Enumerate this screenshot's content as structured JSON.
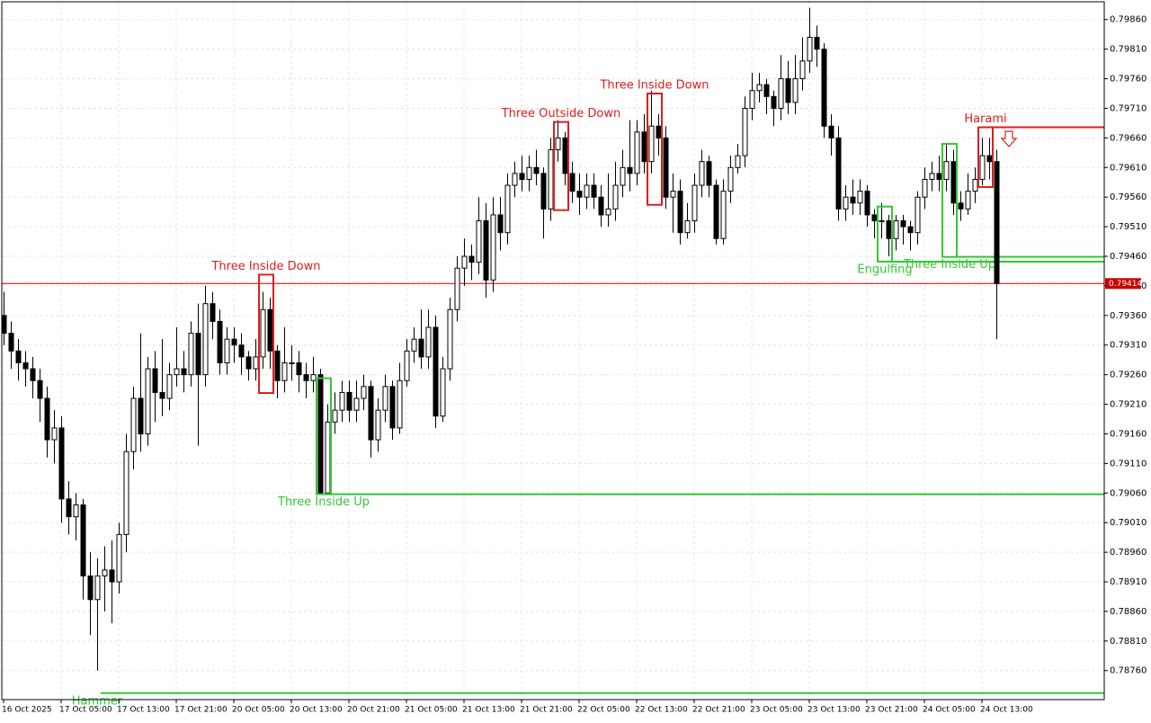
{
  "chart_data": {
    "type": "candlestick",
    "categories": [
      "16 Oct 2025",
      null,
      null,
      null,
      null,
      null,
      null,
      null,
      "17 Oct 05:00",
      null,
      null,
      null,
      null,
      null,
      null,
      null,
      "17 Oct 13:00",
      null,
      null,
      null,
      null,
      null,
      null,
      null,
      "17 Oct 21:00",
      null,
      null,
      null,
      null,
      null,
      null,
      null,
      "20 Oct 05:00",
      null,
      null,
      null,
      null,
      null,
      null,
      null,
      "20 Oct 13:00",
      null,
      null,
      null,
      null,
      null,
      null,
      null,
      "20 Oct 21:00",
      null,
      null,
      null,
      null,
      null,
      null,
      null,
      "21 Oct 05:00",
      null,
      null,
      null,
      null,
      null,
      null,
      null,
      "21 Oct 13:00",
      null,
      null,
      null,
      null,
      null,
      null,
      null,
      "21 Oct 21:00",
      null,
      null,
      null,
      null,
      null,
      null,
      null,
      "22 Oct 05:00",
      null,
      null,
      null,
      null,
      null,
      null,
      null,
      "22 Oct 13:00",
      null,
      null,
      null,
      null,
      null,
      null,
      null,
      "22 Oct 21:00",
      null,
      null,
      null,
      null,
      null,
      null,
      null,
      "23 Oct 05:00",
      null,
      null,
      null,
      null,
      null,
      null,
      null,
      "23 Oct 13:00",
      null,
      null,
      null,
      null,
      null,
      null,
      null,
      "23 Oct 21:00",
      null,
      null,
      null,
      null,
      null,
      null,
      null,
      "24 Oct 05:00",
      null,
      null,
      null,
      null,
      null,
      null,
      null,
      "24 Oct 13:00",
      null,
      null
    ],
    "open": [
      0.7936,
      0.7933,
      0.793,
      0.7928,
      0.7927,
      0.7925,
      0.7922,
      0.7915,
      0.7917,
      0.7905,
      0.7902,
      0.7904,
      0.7892,
      0.7888,
      0.7892,
      0.7893,
      0.7891,
      0.7899,
      0.7913,
      0.7922,
      0.7916,
      0.7927,
      0.7923,
      0.7922,
      0.7926,
      0.7927,
      0.7926,
      0.7933,
      0.7926,
      0.7938,
      0.7935,
      0.7928,
      0.7932,
      0.7931,
      0.7929,
      0.7927,
      0.7929,
      0.7937,
      0.793,
      0.7925,
      0.7928,
      0.7928,
      0.7926,
      0.7925,
      0.7926,
      0.7906,
      0.7918,
      0.792,
      0.7923,
      0.792,
      0.7922,
      0.7924,
      0.7915,
      0.792,
      0.7924,
      0.7917,
      0.7925,
      0.793,
      0.7932,
      0.7929,
      0.7934,
      0.7919,
      0.7927,
      0.7937,
      0.7944,
      0.7946,
      0.7945,
      0.7952,
      0.7942,
      0.7953,
      0.795,
      0.7958,
      0.796,
      0.7959,
      0.7961,
      0.796,
      0.7954,
      0.7964,
      0.7966,
      0.796,
      0.7957,
      0.7956,
      0.7958,
      0.7956,
      0.7953,
      0.7954,
      0.7958,
      0.7961,
      0.796,
      0.7967,
      0.7962,
      0.7968,
      0.7966,
      0.7956,
      0.7957,
      0.795,
      0.7952,
      0.7958,
      0.7962,
      0.7958,
      0.7949,
      0.7957,
      0.7961,
      0.7963,
      0.7971,
      0.7974,
      0.7975,
      0.7973,
      0.7971,
      0.7976,
      0.7972,
      0.7976,
      0.7979,
      0.7983,
      0.7981,
      0.7968,
      0.7966,
      0.7954,
      0.7956,
      0.7955,
      0.7957,
      0.7953,
      0.7952,
      0.7952,
      0.7949,
      0.7952,
      0.7951,
      0.795,
      0.7956,
      0.7959,
      0.796,
      0.7959,
      0.7962,
      0.7955,
      0.7954,
      0.7957,
      0.7959,
      0.7963,
      0.7962
    ],
    "high": [
      0.794,
      0.7935,
      0.7932,
      0.793,
      0.7929,
      0.7927,
      0.7924,
      0.792,
      0.7919,
      0.7908,
      0.7906,
      0.7905,
      0.7896,
      0.7895,
      0.7897,
      0.7898,
      0.7901,
      0.7916,
      0.7924,
      0.7933,
      0.7929,
      0.793,
      0.7932,
      0.7928,
      0.7934,
      0.793,
      0.7935,
      0.7938,
      0.7941,
      0.794,
      0.7937,
      0.7934,
      0.7934,
      0.7933,
      0.793,
      0.7932,
      0.794,
      0.7939,
      0.7931,
      0.7934,
      0.7931,
      0.793,
      0.7928,
      0.7929,
      0.7927,
      0.7921,
      0.7923,
      0.7925,
      0.7925,
      0.7925,
      0.7926,
      0.7925,
      0.7922,
      0.7926,
      0.7925,
      0.7928,
      0.7932,
      0.7934,
      0.7937,
      0.7937,
      0.7936,
      0.7929,
      0.7939,
      0.7946,
      0.7949,
      0.7948,
      0.7956,
      0.7955,
      0.7956,
      0.7956,
      0.796,
      0.7962,
      0.7963,
      0.7963,
      0.7964,
      0.7961,
      0.7966,
      0.7969,
      0.7967,
      0.7962,
      0.796,
      0.796,
      0.796,
      0.7958,
      0.796,
      0.7962,
      0.7964,
      0.7969,
      0.7969,
      0.797,
      0.7974,
      0.797,
      0.7968,
      0.796,
      0.7959,
      0.7955,
      0.796,
      0.7964,
      0.7963,
      0.7959,
      0.7959,
      0.7963,
      0.7965,
      0.7973,
      0.7977,
      0.7977,
      0.7976,
      0.7974,
      0.798,
      0.7979,
      0.798,
      0.7983,
      0.7988,
      0.7985,
      0.7982,
      0.797,
      0.7968,
      0.7958,
      0.7959,
      0.7959,
      0.7958,
      0.7954,
      0.7955,
      0.7953,
      0.7953,
      0.7953,
      0.7952,
      0.7957,
      0.7961,
      0.7962,
      0.7963,
      0.7965,
      0.7964,
      0.7957,
      0.796,
      0.7961,
      0.7966,
      0.7966,
      0.7964
    ],
    "low": [
      0.7931,
      0.7927,
      0.7925,
      0.7924,
      0.7922,
      0.7918,
      0.7912,
      0.7911,
      0.7901,
      0.7899,
      0.7898,
      0.7888,
      0.7882,
      0.7876,
      0.7886,
      0.7884,
      0.7889,
      0.7896,
      0.791,
      0.7913,
      0.7914,
      0.7918,
      0.7919,
      0.792,
      0.7924,
      0.7923,
      0.7924,
      0.7914,
      0.7924,
      0.7932,
      0.7926,
      0.7926,
      0.7928,
      0.7926,
      0.7925,
      0.7925,
      0.7927,
      0.7927,
      0.7922,
      0.7923,
      0.7925,
      0.7923,
      0.7922,
      0.7923,
      0.7906,
      0.7906,
      0.7916,
      0.7918,
      0.7918,
      0.7918,
      0.792,
      0.7912,
      0.7913,
      0.7918,
      0.7915,
      0.7916,
      0.7924,
      0.7928,
      0.7927,
      0.7927,
      0.7917,
      0.7918,
      0.7925,
      0.7935,
      0.7941,
      0.7942,
      0.7943,
      0.7939,
      0.794,
      0.7947,
      0.7948,
      0.7956,
      0.7957,
      0.7957,
      0.7958,
      0.7949,
      0.7952,
      0.7962,
      0.7958,
      0.7955,
      0.7953,
      0.7954,
      0.7954,
      0.7951,
      0.7951,
      0.7952,
      0.7956,
      0.7957,
      0.7958,
      0.796,
      0.796,
      0.7963,
      0.7954,
      0.795,
      0.7948,
      0.7949,
      0.795,
      0.7956,
      0.7956,
      0.7948,
      0.7948,
      0.7955,
      0.796,
      0.7961,
      0.7969,
      0.7972,
      0.797,
      0.7968,
      0.7969,
      0.797,
      0.797,
      0.7974,
      0.7977,
      0.7978,
      0.7966,
      0.7963,
      0.7952,
      0.7952,
      0.7953,
      0.7953,
      0.7951,
      0.7949,
      0.7949,
      0.7946,
      0.7947,
      0.7948,
      0.7947,
      0.7948,
      0.7954,
      0.7957,
      0.7957,
      0.7957,
      0.7953,
      0.7952,
      0.7953,
      0.7955,
      0.7958,
      0.7959,
      0.7932
    ],
    "close": [
      0.7933,
      0.793,
      0.7928,
      0.7927,
      0.7925,
      0.7922,
      0.7915,
      0.7917,
      0.7905,
      0.7902,
      0.7904,
      0.7892,
      0.7888,
      0.7892,
      0.7893,
      0.7891,
      0.7899,
      0.7913,
      0.7922,
      0.7916,
      0.7927,
      0.7923,
      0.7922,
      0.7926,
      0.7927,
      0.7926,
      0.7933,
      0.7926,
      0.7938,
      0.7935,
      0.7928,
      0.7932,
      0.7931,
      0.7929,
      0.7927,
      0.7929,
      0.7937,
      0.793,
      0.7925,
      0.7928,
      0.7928,
      0.7926,
      0.7925,
      0.7926,
      0.7906,
      0.7918,
      0.792,
      0.7923,
      0.792,
      0.7922,
      0.7924,
      0.7915,
      0.792,
      0.7924,
      0.7917,
      0.7925,
      0.793,
      0.7932,
      0.7929,
      0.7934,
      0.7919,
      0.7927,
      0.7937,
      0.7944,
      0.7946,
      0.7945,
      0.7952,
      0.7942,
      0.7953,
      0.795,
      0.7958,
      0.796,
      0.7959,
      0.7961,
      0.796,
      0.7954,
      0.7964,
      0.7966,
      0.796,
      0.7957,
      0.7956,
      0.7958,
      0.7956,
      0.7953,
      0.7954,
      0.7958,
      0.7961,
      0.796,
      0.7967,
      0.7962,
      0.7968,
      0.7966,
      0.7956,
      0.7957,
      0.795,
      0.7952,
      0.7958,
      0.7962,
      0.7958,
      0.7949,
      0.7957,
      0.7961,
      0.7963,
      0.7971,
      0.7974,
      0.7975,
      0.7973,
      0.7971,
      0.7976,
      0.7972,
      0.7976,
      0.7979,
      0.7983,
      0.7981,
      0.7968,
      0.7966,
      0.7954,
      0.7956,
      0.7955,
      0.7957,
      0.7953,
      0.7952,
      0.7952,
      0.7949,
      0.7952,
      0.7951,
      0.795,
      0.7956,
      0.7959,
      0.796,
      0.7959,
      0.7962,
      0.7955,
      0.7954,
      0.7957,
      0.7959,
      0.7963,
      0.7962,
      0.79414
    ],
    "up_color": "#ffffff",
    "down_color": "#000000",
    "outline_color": "#000000",
    "last_price": 0.79414,
    "last_price_color": "#c80000",
    "ylim": [
      0.78711,
      0.7989
    ],
    "yticks": [
      {
        "value": 0.7986,
        "label": "0.79860"
      },
      {
        "value": 0.7981,
        "label": "0.79810"
      },
      {
        "value": 0.7976,
        "label": "0.79760"
      },
      {
        "value": 0.7971,
        "label": "0.79710"
      },
      {
        "value": 0.7966,
        "label": "0.79660"
      },
      {
        "value": 0.7961,
        "label": "0.79610"
      },
      {
        "value": 0.7956,
        "label": "0.79560"
      },
      {
        "value": 0.7951,
        "label": "0.79510"
      },
      {
        "value": 0.7946,
        "label": "0.79460"
      },
      {
        "value": 0.7941,
        "label": "0.79410"
      },
      {
        "value": 0.7936,
        "label": "0.79360"
      },
      {
        "value": 0.7931,
        "label": "0.79310"
      },
      {
        "value": 0.7926,
        "label": "0.79260"
      },
      {
        "value": 0.7921,
        "label": "0.79210"
      },
      {
        "value": 0.7916,
        "label": "0.79160"
      },
      {
        "value": 0.7911,
        "label": "0.79110"
      },
      {
        "value": 0.7906,
        "label": "0.79060"
      },
      {
        "value": 0.7901,
        "label": "0.79010"
      },
      {
        "value": 0.7896,
        "label": "0.78960"
      },
      {
        "value": 0.7891,
        "label": "0.78910"
      },
      {
        "value": 0.7886,
        "label": "0.78860"
      },
      {
        "value": 0.7881,
        "label": "0.78810"
      },
      {
        "value": 0.7876,
        "label": "0.78760"
      }
    ],
    "grid": true,
    "patterns": [
      {
        "label": "Three Inside Down",
        "color": "#dc1e1e",
        "start": 36,
        "end": 37,
        "top": 0.79429,
        "bottom": 0.79229
      },
      {
        "label": "Three Inside Up",
        "color": "#32c832",
        "start": 44,
        "end": 45,
        "top": 0.79254,
        "bottom": 0.79058,
        "level": 0.79058
      },
      {
        "label": "Three Outside Down",
        "color": "#dc1e1e",
        "start": 77,
        "end": 78,
        "top": 0.79687,
        "bottom": 0.79538
      },
      {
        "label": "Three Inside Down",
        "color": "#dc1e1e",
        "start": 90,
        "end": 91,
        "top": 0.79735,
        "bottom": 0.79547
      },
      {
        "label": "Engulfing",
        "color": "#32c832",
        "start": 122,
        "end": 123,
        "top": 0.79544,
        "bottom": 0.79451,
        "level": 0.79451
      },
      {
        "label": "Three Inside Up",
        "color": "#32c832",
        "start": 131,
        "end": 132,
        "top": 0.7965,
        "bottom": 0.79459,
        "level": 0.79459
      },
      {
        "label": "Harami",
        "color": "#dc1e1e",
        "start": 136,
        "end": 137,
        "top": 0.79678,
        "bottom": 0.79577,
        "level": 0.79678
      },
      {
        "label": "Hammer",
        "color": "#32c832",
        "start": 13,
        "end": 13,
        "top": 0.78722,
        "bottom": 0.78722,
        "level": 0.78722
      }
    ]
  }
}
